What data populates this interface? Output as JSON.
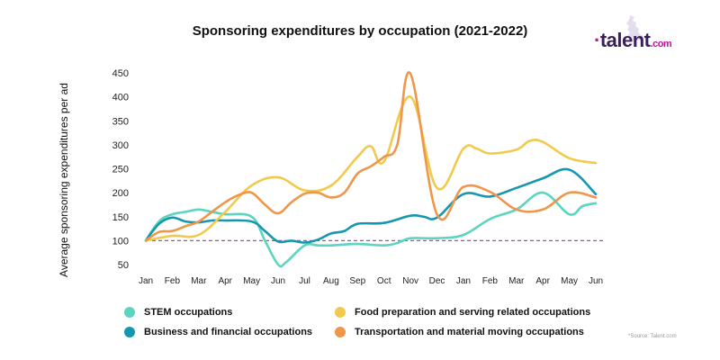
{
  "chart_data": {
    "type": "line",
    "title": "Sponsoring expenditures by occupation (2021-2022)",
    "ylabel": "Average sponsoring expenditures per ad",
    "xlabel": "",
    "categories": [
      "Jan",
      "Feb",
      "Mar",
      "Apr",
      "May",
      "Jun",
      "Jul",
      "Aug",
      "Sep",
      "Oct",
      "Nov",
      "Dec",
      "Jan",
      "Feb",
      "Mar",
      "Apr",
      "May",
      "Jun"
    ],
    "yticks": [
      50,
      100,
      150,
      200,
      250,
      300,
      350,
      400,
      450
    ],
    "ylim": [
      50,
      450
    ],
    "baseline": {
      "value": 100,
      "color": "#a44db5",
      "style": "dashed"
    },
    "grid": false,
    "legend_position": "bottom",
    "series": [
      {
        "name": "STEM occupations",
        "color": "#5dd4bf",
        "x": [
          0,
          0.5,
          1,
          1.5,
          2,
          2.5,
          3,
          4,
          4.5,
          5,
          5.3,
          6,
          6.5,
          7,
          8,
          9,
          9.5,
          10,
          11,
          12,
          13,
          14,
          15,
          16,
          16.5,
          17
        ],
        "values": [
          100,
          140,
          155,
          160,
          165,
          160,
          155,
          150,
          100,
          50,
          55,
          90,
          90,
          90,
          93,
          90,
          95,
          105,
          105,
          112,
          145,
          165,
          200,
          155,
          172,
          178
        ]
      },
      {
        "name": "Business and financial occupations",
        "color": "#1597b0",
        "x": [
          0,
          0.5,
          1,
          1.5,
          2,
          2.5,
          3,
          4,
          4.5,
          5,
          5.5,
          6,
          6.5,
          7,
          7.5,
          8,
          9,
          10,
          10.5,
          11,
          12,
          13,
          14,
          15,
          16,
          17
        ],
        "values": [
          100,
          135,
          148,
          140,
          138,
          142,
          142,
          140,
          120,
          98,
          100,
          96,
          102,
          115,
          120,
          135,
          137,
          152,
          150,
          148,
          197,
          192,
          210,
          230,
          248,
          197
        ]
      },
      {
        "name": "Food preparation and serving related occupations",
        "color": "#f2ca4b",
        "x": [
          0,
          1,
          2,
          3,
          4,
          5,
          6,
          7,
          8,
          8.5,
          9,
          10,
          11,
          12,
          12.5,
          13,
          14,
          14.5,
          15,
          16,
          17
        ],
        "values": [
          100,
          110,
          112,
          160,
          215,
          232,
          205,
          215,
          275,
          297,
          265,
          400,
          210,
          292,
          292,
          282,
          290,
          308,
          306,
          272,
          262
        ]
      },
      {
        "name": "Transportation and material moving occupations",
        "color": "#f0964a",
        "x": [
          0,
          0.5,
          1,
          1.5,
          2,
          2.5,
          3,
          3.5,
          4,
          4.5,
          5,
          5.5,
          6,
          6.5,
          7,
          7.5,
          8,
          8.5,
          9,
          9.5,
          10,
          11,
          12,
          13,
          14,
          15,
          16,
          17
        ],
        "values": [
          100,
          118,
          120,
          130,
          140,
          160,
          180,
          195,
          200,
          175,
          157,
          180,
          198,
          200,
          190,
          200,
          240,
          255,
          275,
          300,
          448,
          155,
          212,
          202,
          165,
          165,
          200,
          190
        ]
      }
    ]
  },
  "legend": [
    {
      "label": "STEM occupations",
      "color": "#5dd4bf"
    },
    {
      "label": "Business and financial occupations",
      "color": "#1597b0"
    },
    {
      "label": "Food preparation and serving related occupations",
      "color": "#f2ca4b"
    },
    {
      "label": "Transportation and material moving occupations",
      "color": "#f0964a"
    }
  ],
  "logo": {
    "prefix": "·",
    "name": "talent",
    "suffix": ".com"
  },
  "source": "*Source: Talent.com"
}
